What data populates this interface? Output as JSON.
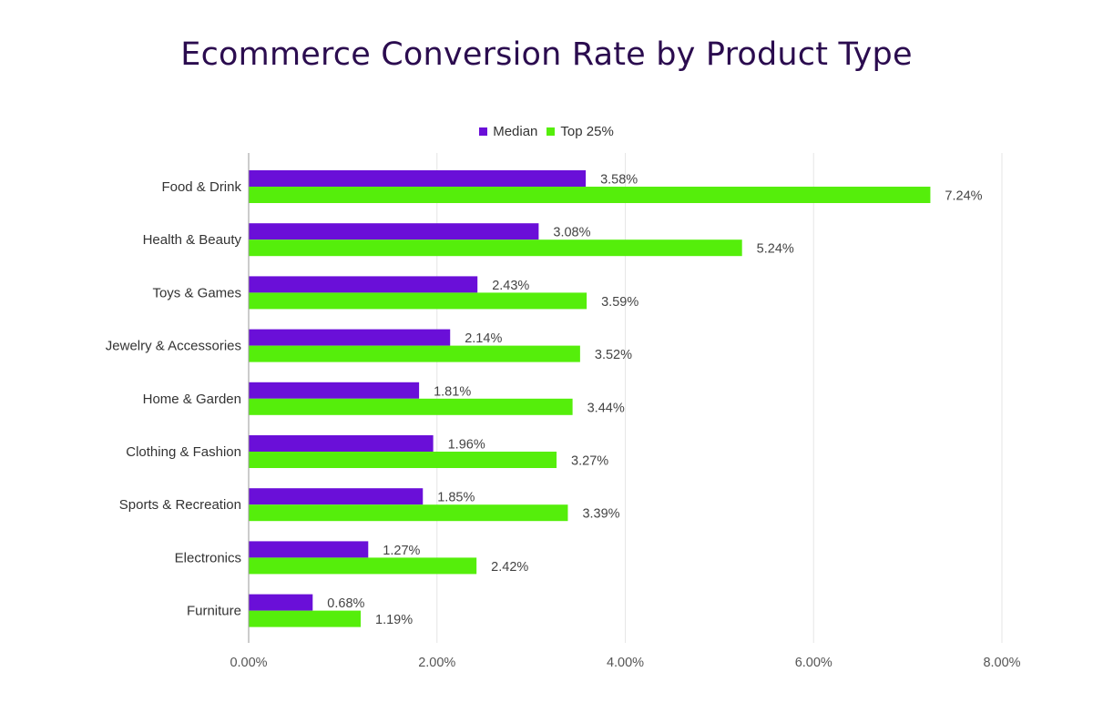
{
  "chart_data": {
    "type": "bar",
    "orientation": "horizontal",
    "title": "Ecommerce Conversion Rate by Product Type",
    "categories": [
      "Food & Drink",
      "Health & Beauty",
      "Toys & Games",
      "Jewelry & Accessories",
      "Home & Garden",
      "Clothing & Fashion",
      "Sports & Recreation",
      "Electronics",
      "Furniture"
    ],
    "series": [
      {
        "name": "Median",
        "color": "#6a0fd8",
        "values": [
          3.58,
          3.08,
          2.43,
          2.14,
          1.81,
          1.96,
          1.85,
          1.27,
          0.68
        ],
        "labels": [
          "3.58%",
          "3.08%",
          "2.43%",
          "2.14%",
          "1.81%",
          "1.96%",
          "1.85%",
          "1.27%",
          "0.68%"
        ]
      },
      {
        "name": "Top 25%",
        "color": "#55ee0b",
        "values": [
          7.24,
          5.24,
          3.59,
          3.52,
          3.44,
          3.27,
          3.39,
          2.42,
          1.19
        ],
        "labels": [
          "7.24%",
          "5.24%",
          "3.59%",
          "3.52%",
          "3.44%",
          "3.27%",
          "3.39%",
          "2.42%",
          "1.19%"
        ]
      }
    ],
    "xlim": [
      0,
      8
    ],
    "xticks": [
      0,
      2,
      4,
      6,
      8
    ],
    "xtick_labels": [
      "0.00%",
      "2.00%",
      "4.00%",
      "6.00%",
      "8.00%"
    ],
    "xlabel": "",
    "ylabel": "",
    "grid": true,
    "legend_position": "top"
  }
}
